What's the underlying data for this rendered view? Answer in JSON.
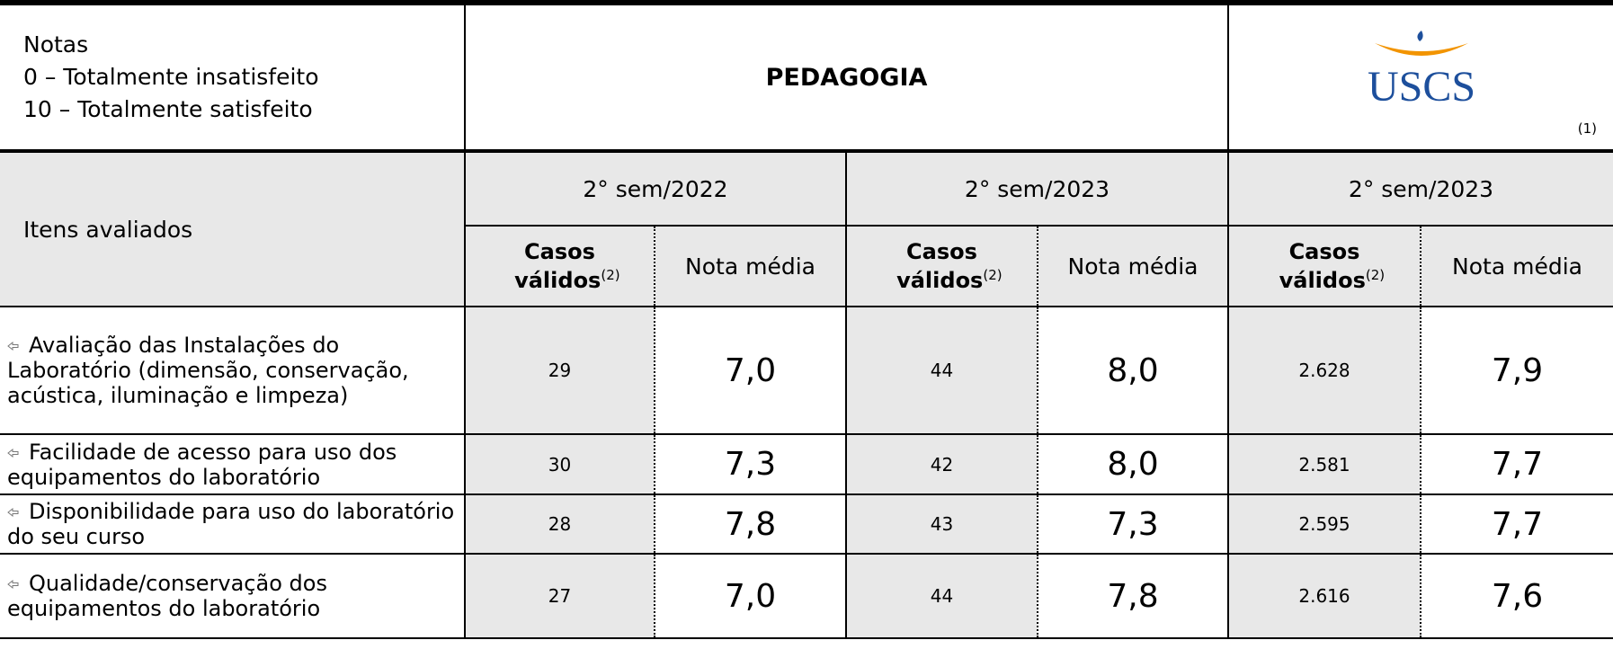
{
  "header": {
    "legend": [
      "Notas",
      "0 – Totalmente insatisfeito",
      "10 – Totalmente satisfeito"
    ],
    "title": "PEDAGOGIA",
    "logo": "USCS",
    "logo_note": "(1)"
  },
  "table": {
    "corner": "Itens avaliados",
    "periods": [
      "2° sem/2022",
      "2° sem/2023",
      "2° sem/2023"
    ],
    "subheaders": {
      "cases": "Casos válidos",
      "cases_note": "(2)",
      "mean": "Nota média"
    },
    "rows": [
      {
        "item": "Avaliação das Instalações do Laboratório (dimensão, conservação, acústica, iluminação e limpeza)",
        "cells": [
          [
            "29",
            "7,0"
          ],
          [
            "44",
            "8,0"
          ],
          [
            "2.628",
            "7,9"
          ]
        ]
      },
      {
        "item": "Facilidade de acesso para uso dos equipamentos do laboratório",
        "cells": [
          [
            "30",
            "7,3"
          ],
          [
            "42",
            "8,0"
          ],
          [
            "2.581",
            "7,7"
          ]
        ]
      },
      {
        "item": "Disponibilidade para uso do laboratório do seu curso",
        "cells": [
          [
            "28",
            "7,8"
          ],
          [
            "43",
            "7,3"
          ],
          [
            "2.595",
            "7,7"
          ]
        ]
      },
      {
        "item": "Qualidade/conservação dos equipamentos do laboratório",
        "cells": [
          [
            "27",
            "7,0"
          ],
          [
            "44",
            "7,8"
          ],
          [
            "2.616",
            "7,6"
          ]
        ]
      }
    ]
  }
}
